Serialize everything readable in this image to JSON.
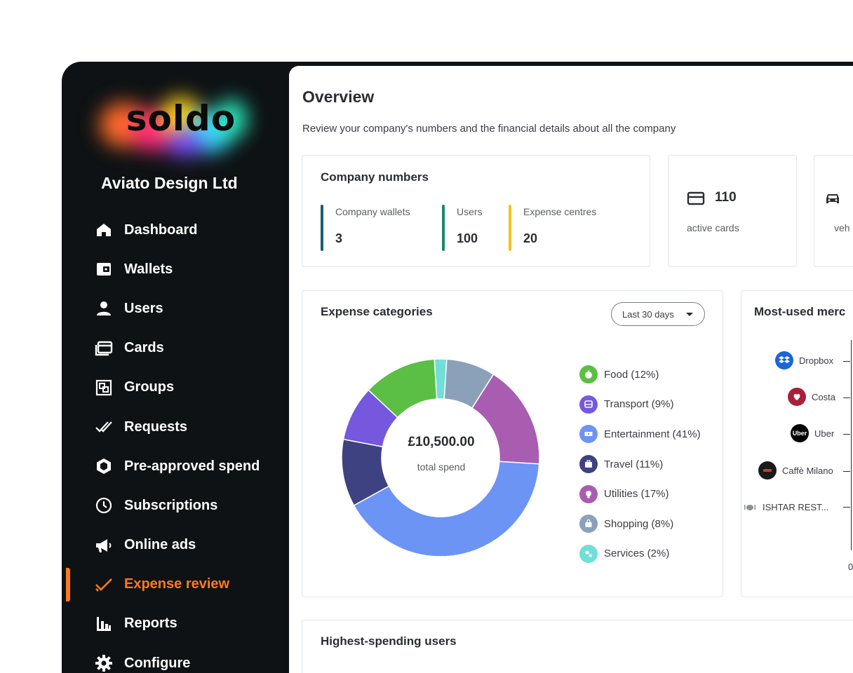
{
  "brand": {
    "logo_text": "soldo",
    "company_name": "Aviato Design Ltd"
  },
  "sidebar": {
    "items": [
      {
        "label": "Dashboard",
        "icon": "home-icon"
      },
      {
        "label": "Wallets",
        "icon": "wallet-icon"
      },
      {
        "label": "Users",
        "icon": "user-icon"
      },
      {
        "label": "Cards",
        "icon": "cards-icon"
      },
      {
        "label": "Groups",
        "icon": "groups-icon"
      },
      {
        "label": "Requests",
        "icon": "double-check-icon"
      },
      {
        "label": "Pre-approved spend",
        "icon": "hexagon-icon"
      },
      {
        "label": "Subscriptions",
        "icon": "clock-icon"
      },
      {
        "label": "Online ads",
        "icon": "megaphone-icon"
      },
      {
        "label": "Expense review",
        "icon": "check-icon",
        "active": true
      },
      {
        "label": "Reports",
        "icon": "bar-chart-icon"
      },
      {
        "label": "Configure",
        "icon": "gear-icon"
      }
    ],
    "active_color": "#ff7a1a"
  },
  "overview": {
    "title": "Overview",
    "subtitle": "Review your company's numbers and the financial details about all the company"
  },
  "company_numbers": {
    "title": "Company numbers",
    "stats": [
      {
        "label": "Company wallets",
        "value": "3",
        "color": "#1e5a7a"
      },
      {
        "label": "Users",
        "value": "100",
        "color": "#1a8a6a"
      },
      {
        "label": "Expense centres",
        "value": "20",
        "color": "#f5c21b"
      }
    ]
  },
  "cards_stat": {
    "value": "110",
    "label": "active cards",
    "icon": "card-icon"
  },
  "vehicles_stat": {
    "label": "veh",
    "icon": "car-icon"
  },
  "expense_categories": {
    "title": "Expense categories",
    "range_select": "Last 30 days",
    "total": "£10,500.00",
    "total_label": "total spend"
  },
  "chart_data": {
    "type": "pie",
    "title": "Expense categories",
    "categories": [
      "Food",
      "Transport",
      "Entertainment",
      "Travel",
      "Utilities",
      "Shopping",
      "Services"
    ],
    "values": [
      12,
      9,
      41,
      11,
      17,
      8,
      2
    ],
    "labels": [
      "Food (12%)",
      "Transport (9%)",
      "Entertainment (41%)",
      "Travel (11%)",
      "Utilities (17%)",
      "Shopping (8%)",
      "Services (2%)"
    ],
    "colors": [
      "#5bbf45",
      "#7558de",
      "#6b94f5",
      "#3e4280",
      "#a95db0",
      "#8aa1b9",
      "#6fdfd8"
    ],
    "icons": [
      "apple-icon",
      "bus-icon",
      "ticket-icon",
      "suitcase-icon",
      "lightbulb-icon",
      "bag-icon",
      "services-icon"
    ]
  },
  "merchants": {
    "title": "Most-used merc",
    "items": [
      {
        "name": "Dropbox",
        "color": "#1a66d9",
        "icon": "dropbox-icon"
      },
      {
        "name": "Costa",
        "color": "#a8203a",
        "icon": "costa-icon"
      },
      {
        "name": "Uber",
        "color": "#000000",
        "icon": "uber-icon"
      },
      {
        "name": "Caffè Milano",
        "color": "#1a1a1a",
        "icon": "cafe-icon"
      },
      {
        "name": "ISHTAR REST...",
        "color": "#8c8f96",
        "icon": "restaurant-icon"
      }
    ],
    "axis_start": "0"
  },
  "highest_spending": {
    "title": "Highest-spending users"
  }
}
